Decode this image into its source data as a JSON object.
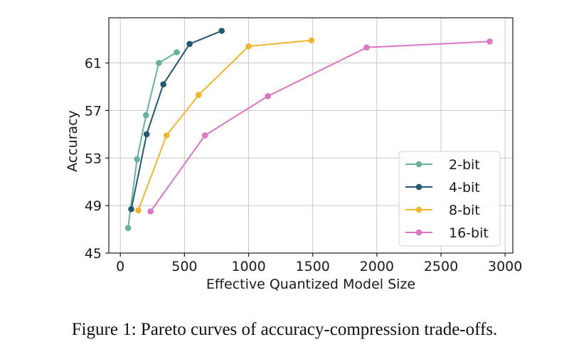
{
  "caption": "Figure 1: Pareto curves of accuracy-compression trade-offs.",
  "chart_data": {
    "type": "line",
    "title": "",
    "xlabel": "Effective Quantized Model Size",
    "ylabel": "Accuracy",
    "xlim": [
      -90,
      3060
    ],
    "ylim": [
      45,
      64.8
    ],
    "xticks": [
      0,
      500,
      1000,
      1500,
      2000,
      2500,
      3000
    ],
    "yticks": [
      45,
      49,
      53,
      57,
      61
    ],
    "grid": true,
    "legend_position": "lower-right",
    "series": [
      {
        "name": "2-bit",
        "color": "#66b39a",
        "x": [
          60,
          130,
          200,
          300,
          440
        ],
        "y": [
          47.1,
          52.9,
          56.6,
          61.0,
          61.9
        ]
      },
      {
        "name": "4-bit",
        "color": "#235872",
        "x": [
          85,
          205,
          335,
          540,
          790
        ],
        "y": [
          48.7,
          55.0,
          59.2,
          62.6,
          63.7
        ]
      },
      {
        "name": "8-bit",
        "color": "#f2b531",
        "x": [
          140,
          360,
          610,
          1000,
          1490
        ],
        "y": [
          48.6,
          54.9,
          58.3,
          62.4,
          62.9
        ]
      },
      {
        "name": "16-bit",
        "color": "#db77c2",
        "x": [
          235,
          660,
          1150,
          1920,
          2880
        ],
        "y": [
          48.5,
          54.9,
          58.2,
          62.3,
          62.8
        ]
      }
    ]
  }
}
